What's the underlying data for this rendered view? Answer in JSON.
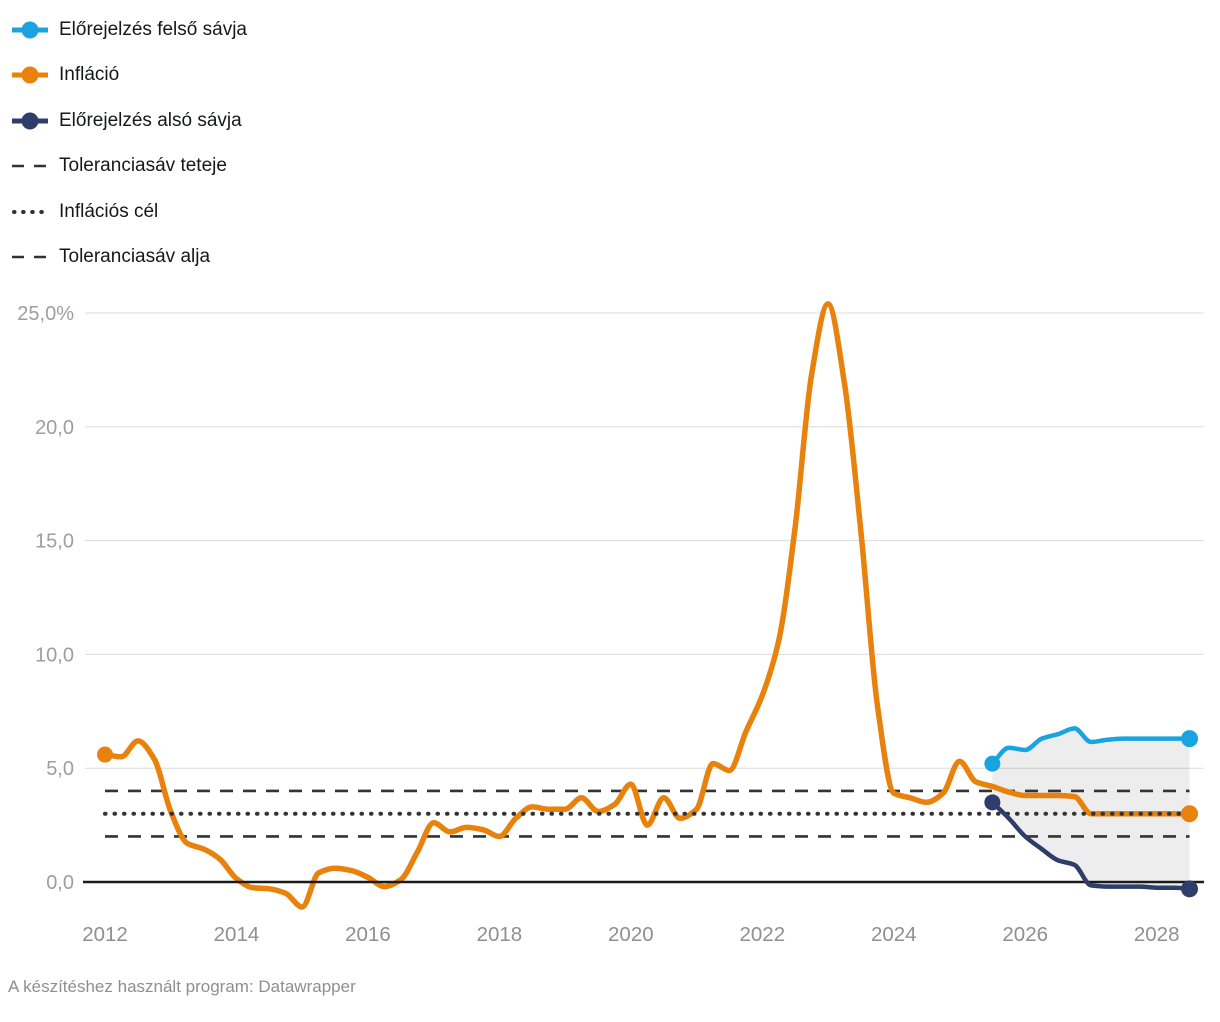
{
  "legend": {
    "items": [
      {
        "label": "Előrejelzés felső sávja",
        "type": "line-dot",
        "color": "#1ba3df"
      },
      {
        "label": "Infláció",
        "type": "line-dot",
        "color": "#e8820c"
      },
      {
        "label": "Előrejelzés alsó sávja",
        "type": "line-dot",
        "color": "#2e3d6a"
      },
      {
        "label": "Toleranciasáv teteje",
        "type": "dashed",
        "color": "#333333"
      },
      {
        "label": "Inflációs cél",
        "type": "dotted",
        "color": "#333333"
      },
      {
        "label": "Toleranciasáv alja",
        "type": "dashed",
        "color": "#333333"
      }
    ]
  },
  "footer": {
    "text": "A készítéshez használt program: Datawrapper"
  },
  "chart_data": {
    "type": "line",
    "unit": "%",
    "y_axis": {
      "tick_values": [
        25,
        20,
        15,
        10,
        5,
        0
      ],
      "tick_labels": [
        "25,0%",
        "20,0",
        "15,0",
        "10,0",
        "5,0",
        "0,0"
      ],
      "range": [
        -1.5,
        25.7
      ],
      "grid": true
    },
    "x_axis": {
      "tick_values": [
        2012,
        2014,
        2016,
        2018,
        2020,
        2022,
        2024,
        2026,
        2028
      ],
      "tick_labels": [
        "2012",
        "2014",
        "2016",
        "2018",
        "2020",
        "2022",
        "2024",
        "2026",
        "2028"
      ],
      "range": [
        2011.7,
        2028.75
      ]
    },
    "history_x": [
      2012.0,
      2012.25,
      2012.5,
      2012.75,
      2013.0,
      2013.25,
      2013.5,
      2013.75,
      2014.0,
      2014.25,
      2014.5,
      2014.75,
      2015.0,
      2015.25,
      2015.5,
      2015.75,
      2016.0,
      2016.25,
      2016.5,
      2016.75,
      2017.0,
      2017.25,
      2017.5,
      2017.75,
      2018.0,
      2018.25,
      2018.5,
      2018.75,
      2019.0,
      2019.25,
      2019.5,
      2019.75,
      2020.0,
      2020.25,
      2020.5,
      2020.75,
      2021.0,
      2021.25,
      2021.5,
      2021.75,
      2022.0,
      2022.25,
      2022.5,
      2022.75,
      2023.0,
      2023.25,
      2023.5,
      2023.75,
      2024.0,
      2024.25,
      2024.5,
      2024.75,
      2025.0,
      2025.25
    ],
    "forecast_x": [
      2025.5,
      2025.75,
      2026.0,
      2026.25,
      2026.5,
      2026.75,
      2027.0,
      2027.25,
      2027.5,
      2027.75,
      2028.0,
      2028.25,
      2028.5
    ],
    "series": [
      {
        "name": "Infláció",
        "color": "#e8820c",
        "segment": "history",
        "values": [
          5.6,
          5.5,
          6.2,
          5.4,
          3.1,
          1.7,
          1.45,
          1.0,
          0.15,
          -0.25,
          -0.3,
          -0.5,
          -1.1,
          0.4,
          0.6,
          0.5,
          0.2,
          -0.2,
          0.1,
          1.3,
          2.6,
          2.2,
          2.4,
          2.3,
          2.0,
          2.8,
          3.3,
          3.2,
          3.2,
          3.7,
          3.1,
          3.4,
          4.3,
          2.5,
          3.7,
          2.8,
          3.2,
          5.2,
          4.9,
          6.6,
          8.2,
          10.6,
          15.6,
          22.3,
          25.4,
          21.9,
          15.4,
          7.8,
          3.9,
          3.7,
          3.5,
          3.9,
          5.3,
          4.4
        ]
      },
      {
        "name": "Infláció (előrejelzés)",
        "color": "#e8820c",
        "segment": "forecast",
        "values": [
          4.2,
          3.95,
          3.8,
          3.8,
          3.8,
          3.75,
          3.0,
          3.0,
          3.0,
          3.0,
          3.0,
          3.0,
          3.0
        ]
      },
      {
        "name": "Előrejelzés felső sávja",
        "color": "#1ba3df",
        "segment": "forecast",
        "values": [
          5.2,
          5.9,
          5.8,
          6.3,
          6.5,
          6.75,
          6.15,
          6.25,
          6.3,
          6.3,
          6.3,
          6.3,
          6.3
        ]
      },
      {
        "name": "Előrejelzés alsó sávja",
        "color": "#2e3d6a",
        "segment": "forecast",
        "values": [
          3.5,
          2.8,
          2.0,
          1.45,
          0.95,
          0.75,
          -0.15,
          -0.2,
          -0.2,
          -0.2,
          -0.25,
          -0.25,
          -0.3
        ]
      }
    ],
    "reference_lines": [
      {
        "name": "Toleranciasáv teteje",
        "value": 4.0,
        "style": "dashed",
        "color": "#333333"
      },
      {
        "name": "Inflációs cél",
        "value": 3.0,
        "style": "dotted",
        "color": "#333333"
      },
      {
        "name": "Toleranciasáv alja",
        "value": 2.0,
        "style": "dashed",
        "color": "#333333"
      }
    ],
    "band": {
      "lower": "Előrejelzés alsó sávja",
      "upper": "Előrejelzés felső sávja",
      "color": "#000000",
      "opacity": 0.07
    },
    "colors": {
      "grid": "#dcdcdc",
      "zero_line": "#1a1a1a",
      "y_tick_text": "#9e9e9e",
      "x_tick_text": "#8f8f8f"
    }
  }
}
